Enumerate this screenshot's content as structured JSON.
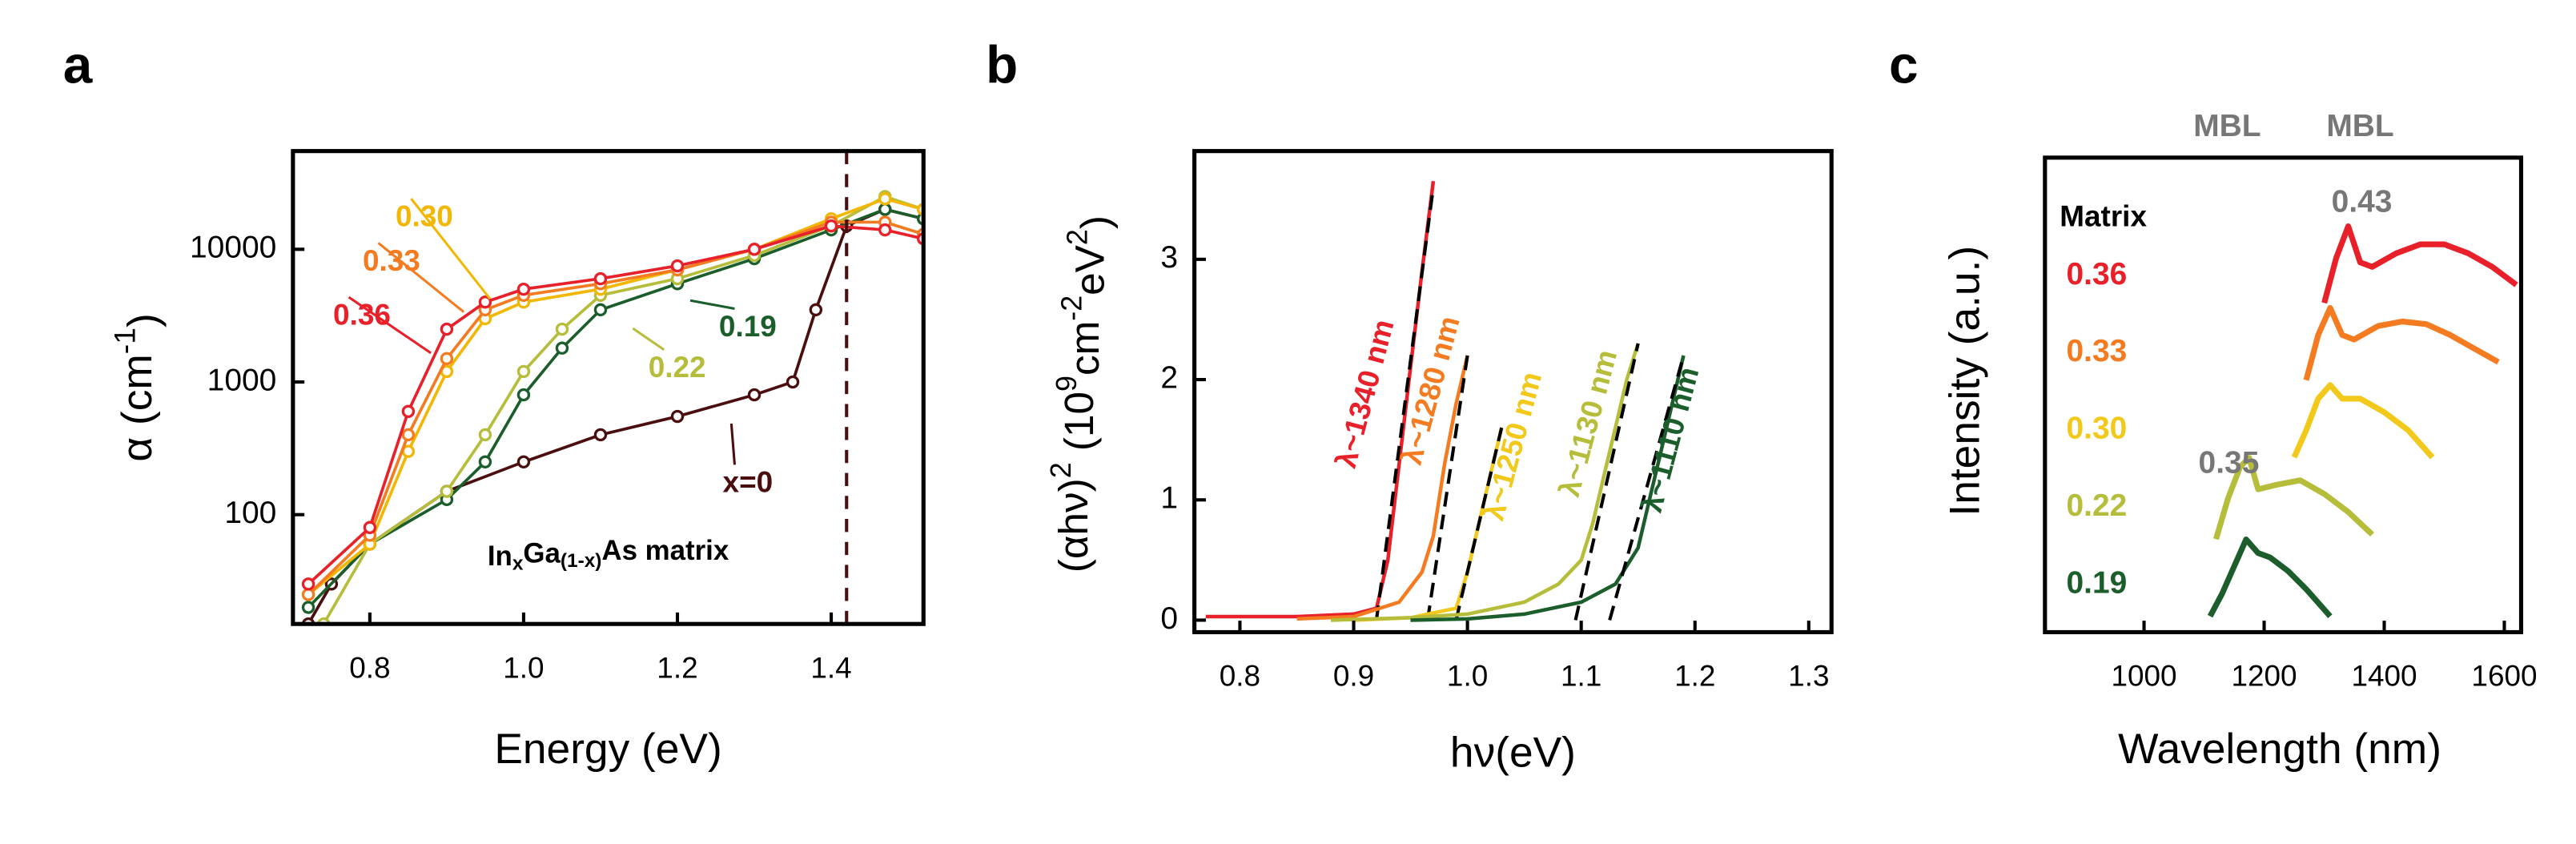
{
  "chart_data": [
    {
      "type": "line",
      "label": "a",
      "log_y": true,
      "xlabel": "Energy (eV)",
      "ylabel": [
        {
          "text": "α (cm"
        },
        {
          "text": "-1",
          "sup": true
        },
        {
          "text": ")"
        }
      ],
      "annotation": [
        {
          "text": "In"
        },
        {
          "text": "x",
          "sub": true
        },
        {
          "text": "Ga"
        },
        {
          "text": "(1-x)",
          "sub": true
        },
        {
          "text": "As matrix"
        }
      ],
      "xlim": [
        0.7,
        1.52
      ],
      "ylim": [
        15,
        55000
      ],
      "xticks": [
        0.8,
        {
          "value": 1,
          "label": "1.0"
        },
        1.2,
        1.4
      ],
      "yticks": [
        100,
        1000,
        10000
      ],
      "vline": 1.42,
      "series": [
        {
          "name": "x=0",
          "color": "#4a0e0e",
          "x": [
            0.72,
            0.75,
            0.8,
            0.9,
            1.0,
            1.1,
            1.2,
            1.3,
            1.35,
            1.38,
            1.42,
            1.47,
            1.52
          ],
          "values": [
            15,
            30,
            60,
            150,
            250,
            400,
            550,
            800,
            1000,
            3500,
            15000,
            20000,
            17000
          ]
        },
        {
          "name": "0.19",
          "color": "#1b5e2b",
          "x": [
            0.72,
            0.8,
            0.9,
            0.95,
            1.0,
            1.05,
            1.1,
            1.2,
            1.3,
            1.4,
            1.47,
            1.52
          ],
          "values": [
            20,
            60,
            130,
            250,
            800,
            1800,
            3500,
            5500,
            8500,
            14000,
            20000,
            17000
          ]
        },
        {
          "name": "0.22",
          "color": "#b5bd3a",
          "x": [
            0.74,
            0.8,
            0.9,
            0.95,
            1.0,
            1.05,
            1.1,
            1.2,
            1.3,
            1.4,
            1.47,
            1.52
          ],
          "values": [
            15,
            60,
            150,
            400,
            1200,
            2500,
            4500,
            6000,
            9000,
            15000,
            25000,
            20000
          ]
        },
        {
          "name": "0.30",
          "color": "#f2b705",
          "x": [
            0.72,
            0.8,
            0.85,
            0.9,
            0.95,
            1.0,
            1.1,
            1.2,
            1.3,
            1.4,
            1.47,
            1.52
          ],
          "values": [
            25,
            60,
            300,
            1200,
            3000,
            4000,
            5000,
            7000,
            10000,
            17000,
            24000,
            20000
          ]
        },
        {
          "name": "0.33",
          "color": "#f47b20",
          "x": [
            0.72,
            0.8,
            0.85,
            0.9,
            0.95,
            1.0,
            1.1,
            1.2,
            1.3,
            1.4,
            1.47,
            1.52
          ],
          "values": [
            25,
            70,
            400,
            1500,
            3500,
            4500,
            5500,
            7000,
            10000,
            16000,
            16000,
            13000
          ]
        },
        {
          "name": "0.36",
          "color": "#e8202a",
          "x": [
            0.72,
            0.8,
            0.85,
            0.9,
            0.95,
            1.0,
            1.1,
            1.2,
            1.3,
            1.4,
            1.47,
            1.52
          ],
          "values": [
            30,
            80,
            600,
            2500,
            4000,
            5000,
            6000,
            7500,
            10000,
            15000,
            14000,
            12000
          ]
        }
      ]
    },
    {
      "type": "line",
      "label": "b",
      "xlabel": "hν(eV)",
      "ylabel": [
        {
          "text": "(αhν)"
        },
        {
          "text": "2",
          "sup": true
        },
        {
          "text": " (10"
        },
        {
          "text": "9",
          "sup": true
        },
        {
          "text": "cm"
        },
        {
          "text": "-2",
          "sup": true
        },
        {
          "text": "eV"
        },
        {
          "text": "2",
          "sup": true
        },
        {
          "text": ")"
        }
      ],
      "xlim": [
        0.76,
        1.32
      ],
      "ylim": [
        -0.1,
        3.9
      ],
      "xticks": [
        0.8,
        0.9,
        {
          "value": 1,
          "label": "1.0"
        },
        1.1,
        1.2,
        1.3
      ],
      "yticks": [
        0,
        1,
        2,
        3
      ],
      "series": [
        {
          "name": "λ~1340 nm",
          "color": "#e8202a",
          "x": [
            0.77,
            0.85,
            0.9,
            0.92,
            0.93,
            0.94,
            0.95,
            0.96,
            0.97
          ],
          "values": [
            0.03,
            0.03,
            0.05,
            0.1,
            0.5,
            1.3,
            2.1,
            2.9,
            3.65
          ],
          "fit_x": [
            0.92,
            0.97
          ],
          "fit_y": [
            0,
            3.6
          ]
        },
        {
          "name": "λ~1280 nm",
          "color": "#f47b20",
          "x": [
            0.85,
            0.9,
            0.94,
            0.96,
            0.97,
            0.98,
            0.99,
            1.0
          ],
          "values": [
            0.01,
            0.03,
            0.15,
            0.4,
            0.7,
            1.3,
            1.8,
            2.2
          ],
          "fit_x": [
            0.965,
            1.0
          ],
          "fit_y": [
            0,
            2.2
          ]
        },
        {
          "name": "λ~1250 nm",
          "color": "#f2c81a",
          "x": [
            0.9,
            0.95,
            0.99,
            1.0,
            1.01,
            1.02,
            1.03
          ],
          "values": [
            0,
            0.02,
            0.1,
            0.4,
            0.8,
            1.2,
            1.6
          ],
          "fit_x": [
            0.99,
            1.03
          ],
          "fit_y": [
            0,
            1.6
          ]
        },
        {
          "name": "λ~1130 nm",
          "color": "#b5bd3a",
          "x": [
            0.88,
            0.95,
            1.0,
            1.05,
            1.08,
            1.1,
            1.11,
            1.12,
            1.13,
            1.14,
            1.15
          ],
          "values": [
            0,
            0.02,
            0.05,
            0.15,
            0.3,
            0.5,
            0.8,
            1.2,
            1.6,
            2.0,
            2.3
          ],
          "fit_x": [
            1.095,
            1.15
          ],
          "fit_y": [
            0,
            2.3
          ]
        },
        {
          "name": "λ~1110 nm",
          "color": "#1b5e2b",
          "x": [
            0.95,
            1.0,
            1.05,
            1.1,
            1.13,
            1.15,
            1.16,
            1.17,
            1.18,
            1.19
          ],
          "values": [
            0,
            0.01,
            0.05,
            0.15,
            0.3,
            0.6,
            1.0,
            1.4,
            1.8,
            2.2
          ],
          "fit_x": [
            1.125,
            1.19
          ],
          "fit_y": [
            0,
            2.2
          ]
        }
      ]
    },
    {
      "type": "spectra",
      "label": "c",
      "xlabel": "Wavelength (nm)",
      "ylabel": "Intensity (a.u.)",
      "legend_title": "Matrix",
      "top_labels": [
        "MBL",
        "MBL"
      ],
      "peak_labels": [
        "0.43",
        "0.35"
      ],
      "xlim": [
        835,
        1628
      ],
      "xticks": [
        1000,
        1200,
        1400,
        1600
      ],
      "series": [
        {
          "name": "0.36",
          "color": "#e8202a",
          "x": [
            1300,
            1320,
            1340,
            1360,
            1380,
            1420,
            1460,
            1500,
            1540,
            1580,
            1620
          ],
          "values": [
            0.1,
            0.6,
            0.95,
            0.55,
            0.5,
            0.65,
            0.75,
            0.75,
            0.65,
            0.5,
            0.3
          ]
        },
        {
          "name": "0.33",
          "color": "#f47b20",
          "x": [
            1270,
            1290,
            1310,
            1330,
            1350,
            1390,
            1430,
            1470,
            1510,
            1550,
            1590
          ],
          "values": [
            0.1,
            0.6,
            0.9,
            0.6,
            0.55,
            0.7,
            0.75,
            0.72,
            0.6,
            0.45,
            0.3
          ]
        },
        {
          "name": "0.30",
          "color": "#f2c81a",
          "x": [
            1250,
            1270,
            1290,
            1310,
            1330,
            1360,
            1400,
            1440,
            1480
          ],
          "values": [
            0.1,
            0.4,
            0.75,
            0.9,
            0.75,
            0.75,
            0.6,
            0.4,
            0.1
          ]
        },
        {
          "name": "0.22",
          "color": "#b5bd3a",
          "x": [
            1120,
            1140,
            1160,
            1175,
            1190,
            1220,
            1260,
            1300,
            1340,
            1380
          ],
          "values": [
            0.05,
            0.5,
            0.85,
            0.95,
            0.6,
            0.65,
            0.7,
            0.55,
            0.35,
            0.1
          ]
        },
        {
          "name": "0.19",
          "color": "#1b5e2b",
          "x": [
            1110,
            1130,
            1150,
            1170,
            1190,
            1210,
            1240,
            1270,
            1310
          ],
          "values": [
            0.05,
            0.3,
            0.6,
            0.9,
            0.75,
            0.7,
            0.55,
            0.35,
            0.05
          ]
        }
      ]
    }
  ]
}
